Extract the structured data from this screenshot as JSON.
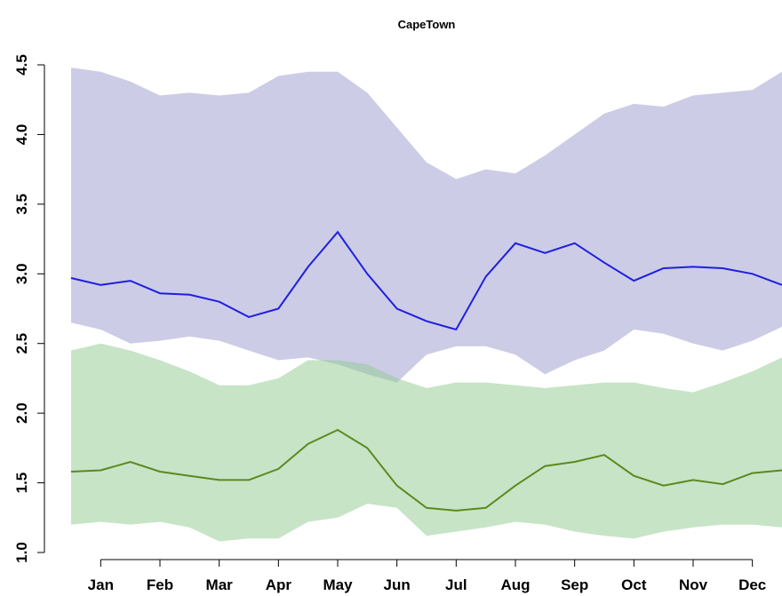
{
  "chart_data": {
    "type": "line",
    "title": "CapeTown",
    "x": [
      0.5,
      1,
      1.5,
      2,
      2.5,
      3,
      3.5,
      4,
      4.5,
      5,
      5.5,
      6,
      6.5,
      7,
      7.5,
      8,
      8.5,
      9,
      9.5,
      10,
      10.5,
      11,
      11.5,
      12,
      12.5
    ],
    "xlim": [
      0.5,
      12.5
    ],
    "xticks": [
      {
        "value": 1,
        "label": "Jan"
      },
      {
        "value": 2,
        "label": "Feb"
      },
      {
        "value": 3,
        "label": "Mar"
      },
      {
        "value": 4,
        "label": "Apr"
      },
      {
        "value": 5,
        "label": "May"
      },
      {
        "value": 6,
        "label": "Jun"
      },
      {
        "value": 7,
        "label": "Jul"
      },
      {
        "value": 8,
        "label": "Aug"
      },
      {
        "value": 9,
        "label": "Sep"
      },
      {
        "value": 10,
        "label": "Oct"
      },
      {
        "value": 11,
        "label": "Nov"
      },
      {
        "value": 12,
        "label": "Dec"
      }
    ],
    "ylim": [
      1.0,
      4.5
    ],
    "yticks": [
      {
        "value": 1,
        "label": "1.0"
      },
      1.5,
      {
        "value": 2,
        "label": "2.0"
      },
      2.5,
      {
        "value": 3,
        "label": "3.0"
      },
      3.5,
      {
        "value": 4,
        "label": "4.0"
      },
      4.5
    ],
    "band_opacity": 0.5,
    "bands": [
      {
        "color": "#9a9acd",
        "upper": [
          4.48,
          4.45,
          4.38,
          4.28,
          4.3,
          4.28,
          4.3,
          4.42,
          4.45,
          4.45,
          4.3,
          4.05,
          3.8,
          3.68,
          3.75,
          3.72,
          3.85,
          4.0,
          4.15,
          4.22,
          4.2,
          4.28,
          4.3,
          4.32,
          4.45
        ],
        "lower": [
          2.65,
          2.6,
          2.5,
          2.52,
          2.55,
          2.52,
          2.45,
          2.38,
          2.4,
          2.35,
          2.28,
          2.22,
          2.42,
          2.48,
          2.48,
          2.42,
          2.28,
          2.38,
          2.45,
          2.6,
          2.57,
          2.5,
          2.45,
          2.52,
          2.62
        ]
      },
      {
        "color": "#8fca8f",
        "upper": [
          2.45,
          2.5,
          2.45,
          2.38,
          2.3,
          2.2,
          2.2,
          2.25,
          2.38,
          2.38,
          2.35,
          2.25,
          2.18,
          2.22,
          2.22,
          2.2,
          2.18,
          2.2,
          2.22,
          2.22,
          2.18,
          2.15,
          2.22,
          2.3,
          2.4
        ],
        "lower": [
          1.2,
          1.22,
          1.2,
          1.22,
          1.18,
          1.08,
          1.1,
          1.1,
          1.22,
          1.25,
          1.35,
          1.32,
          1.12,
          1.15,
          1.18,
          1.22,
          1.2,
          1.15,
          1.12,
          1.1,
          1.15,
          1.18,
          1.2,
          1.2,
          1.18
        ]
      }
    ],
    "series": [
      {
        "color": "#1f1fe0",
        "values": [
          2.97,
          2.92,
          2.95,
          2.86,
          2.85,
          2.8,
          2.69,
          2.75,
          3.05,
          3.3,
          3.0,
          2.75,
          2.66,
          2.6,
          2.98,
          3.22,
          3.15,
          3.22,
          3.08,
          2.95,
          3.04,
          3.05,
          3.04,
          3.0,
          2.92
        ]
      },
      {
        "color": "#5a8a1e",
        "values": [
          1.58,
          1.59,
          1.65,
          1.58,
          1.55,
          1.52,
          1.52,
          1.6,
          1.78,
          1.88,
          1.75,
          1.48,
          1.32,
          1.3,
          1.32,
          1.48,
          1.62,
          1.65,
          1.7,
          1.55,
          1.48,
          1.52,
          1.49,
          1.57,
          1.59
        ]
      }
    ]
  }
}
